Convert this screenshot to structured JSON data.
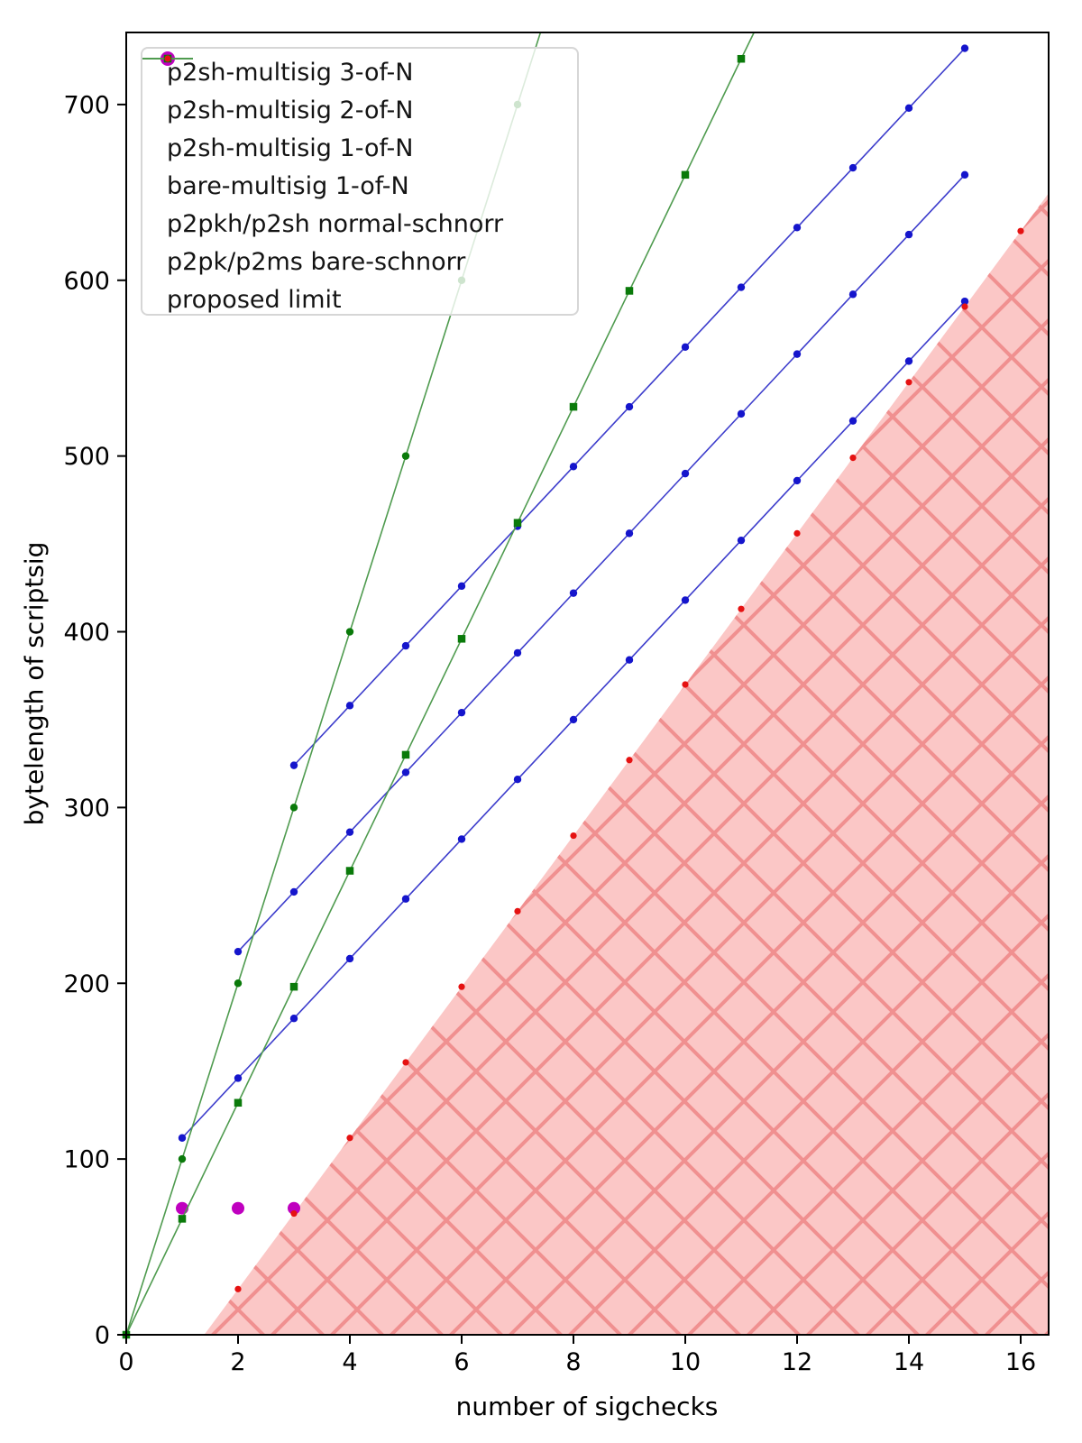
{
  "chart_data": {
    "type": "line+scatter",
    "title": "",
    "xlabel": "number of sigchecks",
    "ylabel": "bytelength of scriptsig",
    "xlim": [
      0,
      16.5
    ],
    "ylim": [
      0,
      741
    ],
    "x_ticks": [
      0,
      2,
      4,
      6,
      8,
      10,
      12,
      14,
      16
    ],
    "y_ticks": [
      0,
      100,
      200,
      300,
      400,
      500,
      600,
      700
    ],
    "grid": false,
    "legend_position": "upper-left",
    "series": [
      {
        "name": "p2sh-multisig 3-of-N",
        "type": "line",
        "marker": "circle",
        "color": "#1515cc",
        "line_color": "#3d3dcc",
        "marker_radius": 4.2,
        "x": [
          3,
          4,
          5,
          6,
          7,
          8,
          9,
          10,
          11,
          12,
          13,
          14,
          15
        ],
        "y": [
          324,
          358,
          392,
          426,
          460,
          494,
          528,
          562,
          596,
          630,
          664,
          698,
          732
        ]
      },
      {
        "name": "p2sh-multisig 2-of-N",
        "type": "line",
        "marker": "circle",
        "color": "#1515cc",
        "line_color": "#3d3dcc",
        "marker_radius": 4.2,
        "x": [
          2,
          3,
          4,
          5,
          6,
          7,
          8,
          9,
          10,
          11,
          12,
          13,
          14,
          15
        ],
        "y": [
          218,
          252,
          286,
          320,
          354,
          388,
          422,
          456,
          490,
          524,
          558,
          592,
          626,
          660
        ]
      },
      {
        "name": "p2sh-multisig 1-of-N",
        "type": "line",
        "marker": "circle",
        "color": "#1515cc",
        "line_color": "#3d3dcc",
        "marker_radius": 4.2,
        "x": [
          1,
          2,
          3,
          4,
          5,
          6,
          7,
          8,
          9,
          10,
          11,
          12,
          13,
          14,
          15
        ],
        "y": [
          112,
          146,
          180,
          214,
          248,
          282,
          316,
          350,
          384,
          418,
          452,
          486,
          520,
          554,
          588
        ]
      },
      {
        "name": "bare-multisig 1-of-N",
        "type": "scatter",
        "marker": "circle",
        "color": "#bf00bf",
        "marker_radius": 7,
        "x": [
          1,
          2,
          3
        ],
        "y": [
          72,
          72,
          72
        ]
      },
      {
        "name": "p2pkh/p2sh normal-schnorr",
        "type": "line",
        "marker": "circle",
        "color": "#0a7a0a",
        "line_color": "#4f9b4f",
        "marker_radius": 4.2,
        "x": [
          0,
          1,
          2,
          3,
          4,
          5,
          6,
          7
        ],
        "y": [
          0,
          100,
          200,
          300,
          400,
          500,
          600,
          700
        ],
        "line_end": {
          "x": 7.41,
          "y": 741
        }
      },
      {
        "name": "p2pk/p2ms bare-schnorr",
        "type": "line",
        "marker": "square",
        "color": "#0a7a0a",
        "line_color": "#4f9b4f",
        "marker_radius": 4.25,
        "x": [
          0,
          1,
          2,
          3,
          4,
          5,
          6,
          7,
          8,
          9,
          10,
          11
        ],
        "y": [
          0,
          66,
          132,
          198,
          264,
          330,
          396,
          462,
          528,
          594,
          660,
          726
        ],
        "line_end": {
          "x": 11.23,
          "y": 741
        }
      },
      {
        "name": "proposed limit",
        "type": "scatter",
        "marker": "circle",
        "color": "#e51212",
        "marker_radius": 3.6,
        "x": [
          2,
          3,
          4,
          5,
          6,
          7,
          8,
          9,
          10,
          11,
          12,
          13,
          14,
          15,
          16
        ],
        "y": [
          26,
          69,
          112,
          155,
          198,
          241,
          284,
          327,
          370,
          413,
          456,
          499,
          542,
          585,
          628
        ]
      }
    ],
    "region": {
      "name": "excluded region beyond proposed limit",
      "vertices_xy": [
        [
          1.395,
          0
        ],
        [
          16.5,
          649.5
        ],
        [
          16.5,
          0
        ]
      ],
      "fill": "#fbc7c6",
      "hatch": "x",
      "hatch_color": "#f09090",
      "hatch_spacing": 66,
      "hatch_linewidth": 4
    }
  },
  "style": {
    "axis_color": "#000000",
    "tick_label_color": "#000000",
    "legend_border_color": "#d6d6d6"
  }
}
